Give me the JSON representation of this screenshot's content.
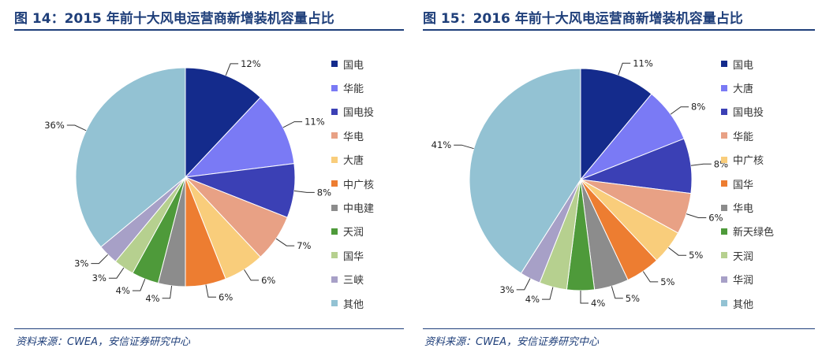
{
  "colors": [
    "#142b8c",
    "#7a7af5",
    "#3b40b5",
    "#e8a185",
    "#f9cd7b",
    "#ed7d31",
    "#8c8c8c",
    "#4e9a3a",
    "#b6d08f",
    "#a7a0c7",
    "#93c2d3"
  ],
  "chart_data": [
    {
      "type": "pie",
      "title": "图 14：2015 年前十大风电运营商新增装机容量占比",
      "categories": [
        "国电",
        "华能",
        "国电投",
        "华电",
        "大唐",
        "中广核",
        "中电建",
        "天润",
        "国华",
        "三峡",
        "其他"
      ],
      "values": [
        12,
        11,
        8,
        7,
        6,
        6,
        4,
        4,
        3,
        3,
        36
      ],
      "labels": [
        "12%",
        "11%",
        "8%",
        "7%",
        "6%",
        "6%",
        "4%",
        "4%",
        "3%",
        "3%",
        "36%"
      ],
      "legend_placement": "right",
      "source": "资料来源：CWEA，安信证券研究中心"
    },
    {
      "type": "pie",
      "title": "图 15：2016 年前十大风电运营商新增装机容量占比",
      "categories": [
        "国电",
        "大唐",
        "国电投",
        "华能",
        "中广核",
        "国华",
        "华电",
        "新天绿色",
        "天润",
        "华润",
        "其他"
      ],
      "values": [
        11,
        8,
        8,
        6,
        5,
        5,
        5,
        4,
        4,
        3,
        41
      ],
      "labels": [
        "11%",
        "8%",
        "8%",
        "6%",
        "5%",
        "5%",
        "5%",
        "4%",
        "4%",
        "3%",
        "41%"
      ],
      "legend_placement": "right",
      "source": "资料来源：CWEA，安信证券研究中心"
    }
  ]
}
